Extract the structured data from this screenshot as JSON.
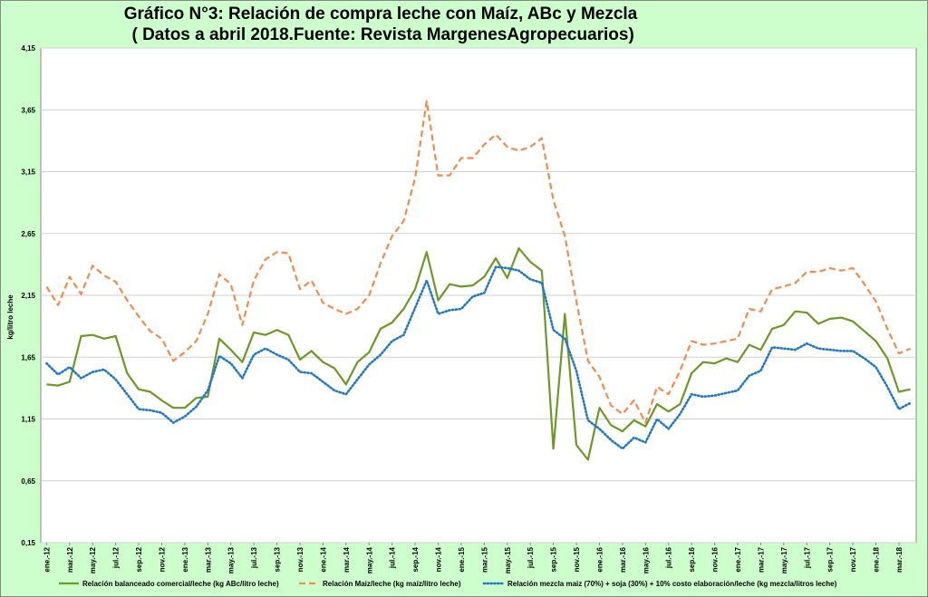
{
  "title_line1": "Gráfico N°3: Relación de compra leche con Maíz, ABc y Mezcla",
  "title_line2": " ( Datos a abril 2018.Fuente: Revista MargenesAgropecuarios)",
  "colors": {
    "background": "#ccffcc",
    "plot_area": "#ffffff",
    "green": "#6a9a24",
    "orange": "#f28c4a",
    "blue": "#1f78c8"
  },
  "chart_data": {
    "type": "line",
    "title": "Gráfico N°3: Relación de compra leche con Maíz, ABc y Mezcla",
    "subtitle": "( Datos a abril 2018.Fuente: Revista MargenesAgropecuarios)",
    "xlabel": "",
    "ylabel": "kg/litro leche",
    "ylim": [
      0.15,
      4.15
    ],
    "yticks": [
      "0,15",
      "0,65",
      "1,15",
      "1,65",
      "2,15",
      "2,65",
      "3,15",
      "3,65",
      "4,15"
    ],
    "ytick_values": [
      0.15,
      0.65,
      1.15,
      1.65,
      2.15,
      2.65,
      3.15,
      3.65,
      4.15
    ],
    "grid": true,
    "legend_position": "bottom",
    "categories": [
      "ene.-12",
      "feb.-12",
      "mar.-12",
      "abr.-12",
      "may.-12",
      "jun.-12",
      "jul.-12",
      "ago.-12",
      "sep.-12",
      "oct.-12",
      "nov.-12",
      "dic.-12",
      "ene.-13",
      "feb.-13",
      "mar.-13",
      "abr.-13",
      "may.-13",
      "jun.-13",
      "jul.-13",
      "ago.-13",
      "sep.-13",
      "oct.-13",
      "nov.-13",
      "dic.-13",
      "ene.-14",
      "feb.-14",
      "mar.-14",
      "abr.-14",
      "may.-14",
      "jun.-14",
      "jul.-14",
      "ago.-14",
      "sep.-14",
      "oct.-14",
      "nov.-14",
      "dic.-14",
      "ene.-15",
      "feb.-15",
      "mar.-15",
      "abr.-15",
      "may.-15",
      "jun.-15",
      "jul.-15",
      "ago.-15",
      "sep.-15",
      "oct.-15",
      "nov.-15",
      "dic.-15",
      "ene.-16",
      "feb.-16",
      "mar.-16",
      "abr.-16",
      "may.-16",
      "jun.-16",
      "jul.-16",
      "ago.-16",
      "sep.-16",
      "oct.-16",
      "nov.-16",
      "dic.-16",
      "ene.-17",
      "feb.-17",
      "mar.-17",
      "abr.-17",
      "may.-17",
      "jun.-17",
      "jul.-17",
      "ago.-17",
      "sep.-17",
      "oct.-17",
      "nov.-17",
      "dic.-17",
      "ene.-18",
      "feb.-18",
      "mar.-18",
      "abr.-18"
    ],
    "xtick_labels": [
      "ene.-12",
      "mar.-12",
      "may.-12",
      "jul.-12",
      "sep.-12",
      "nov.-12",
      "ene.-13",
      "mar.-13",
      "may.-13",
      "jul.-13",
      "sep.-13",
      "nov.-13",
      "ene.-14",
      "mar.-14",
      "may.-14",
      "jul.-14",
      "sep.-14",
      "nov.-14",
      "ene.-15",
      "mar.-15",
      "may.-15",
      "jul.-15",
      "sep.-15",
      "nov.-15",
      "ene.-16",
      "mar.-16",
      "may.-16",
      "jul.-16",
      "sep.-16",
      "nov.-16",
      "ene.-17",
      "mar.-17",
      "may.-17",
      "jul.-17",
      "sep.-17",
      "nov.-17",
      "ene.-18",
      "mar.-18"
    ],
    "series": [
      {
        "name": "Relación balanceado comercial/leche (kg ABc/litro leche)",
        "style": "solid",
        "color": "#6a9a24",
        "values": [
          1.43,
          1.42,
          1.45,
          1.82,
          1.83,
          1.8,
          1.82,
          1.52,
          1.39,
          1.37,
          1.3,
          1.24,
          1.24,
          1.32,
          1.33,
          1.8,
          1.71,
          1.61,
          1.85,
          1.83,
          1.87,
          1.83,
          1.63,
          1.7,
          1.61,
          1.56,
          1.43,
          1.61,
          1.69,
          1.88,
          1.93,
          2.04,
          2.2,
          2.5,
          2.11,
          2.24,
          2.22,
          2.23,
          2.3,
          2.45,
          2.29,
          2.53,
          2.42,
          2.35,
          0.91,
          2.0,
          0.94,
          0.82,
          1.24,
          1.1,
          1.05,
          1.14,
          1.09,
          1.27,
          1.21,
          1.27,
          1.52,
          1.61,
          1.6,
          1.64,
          1.61,
          1.75,
          1.71,
          1.88,
          1.91,
          2.02,
          2.01,
          1.92,
          1.96,
          1.97,
          1.94,
          1.86,
          1.78,
          1.64,
          1.37,
          1.39
        ]
      },
      {
        "name": "Relación Maiz/leche (kg maíz/litro leche)",
        "style": "dashed",
        "color": "#f28c4a",
        "values": [
          2.22,
          2.07,
          2.3,
          2.16,
          2.39,
          2.31,
          2.26,
          2.11,
          1.98,
          1.86,
          1.8,
          1.62,
          1.69,
          1.78,
          2.0,
          2.32,
          2.24,
          1.91,
          2.27,
          2.44,
          2.5,
          2.49,
          2.2,
          2.27,
          2.09,
          2.04,
          2.0,
          2.04,
          2.15,
          2.41,
          2.63,
          2.75,
          3.1,
          3.72,
          3.12,
          3.12,
          3.26,
          3.26,
          3.37,
          3.45,
          3.35,
          3.32,
          3.35,
          3.42,
          2.92,
          2.63,
          2.1,
          1.62,
          1.49,
          1.26,
          1.19,
          1.3,
          1.12,
          1.41,
          1.35,
          1.54,
          1.78,
          1.75,
          1.76,
          1.78,
          1.8,
          2.04,
          2.02,
          2.2,
          2.22,
          2.25,
          2.34,
          2.34,
          2.37,
          2.35,
          2.37,
          2.24,
          2.1,
          1.88,
          1.68,
          1.72
        ]
      },
      {
        "name": "Relación mezcla maiz (70%) + soja (30%) + 10% costo elaboración/leche (kg mezcla/litros leche)",
        "style": "dotted",
        "color": "#1f78c8",
        "values": [
          1.6,
          1.51,
          1.57,
          1.48,
          1.53,
          1.55,
          1.47,
          1.35,
          1.23,
          1.22,
          1.2,
          1.12,
          1.17,
          1.25,
          1.38,
          1.66,
          1.6,
          1.48,
          1.67,
          1.72,
          1.67,
          1.63,
          1.53,
          1.52,
          1.45,
          1.38,
          1.35,
          1.47,
          1.59,
          1.67,
          1.78,
          1.83,
          2.05,
          2.27,
          2.0,
          2.03,
          2.04,
          2.14,
          2.17,
          2.38,
          2.37,
          2.35,
          2.28,
          2.25,
          1.87,
          1.8,
          1.54,
          1.14,
          1.07,
          0.98,
          0.91,
          1.0,
          0.96,
          1.15,
          1.07,
          1.19,
          1.35,
          1.33,
          1.34,
          1.36,
          1.38,
          1.5,
          1.54,
          1.73,
          1.72,
          1.71,
          1.76,
          1.72,
          1.71,
          1.7,
          1.7,
          1.64,
          1.57,
          1.41,
          1.23,
          1.28
        ]
      }
    ]
  }
}
